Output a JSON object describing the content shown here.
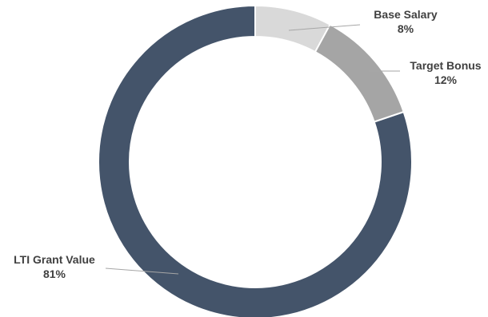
{
  "chart_data": {
    "type": "pie",
    "variant": "donut",
    "title": "",
    "slices": [
      {
        "name": "Base Salary",
        "value": 8,
        "label": "8%",
        "color": "#d9d9d9"
      },
      {
        "name": "Target Bonus",
        "value": 12,
        "label": "12%",
        "color": "#a5a5a5"
      },
      {
        "name": "LTI Grant Value",
        "value": 81,
        "label": "81%",
        "color": "#44546a"
      }
    ],
    "start_angle_deg": 0,
    "direction": "clockwise",
    "legend": "none",
    "slice_border_color": "#ffffff"
  }
}
